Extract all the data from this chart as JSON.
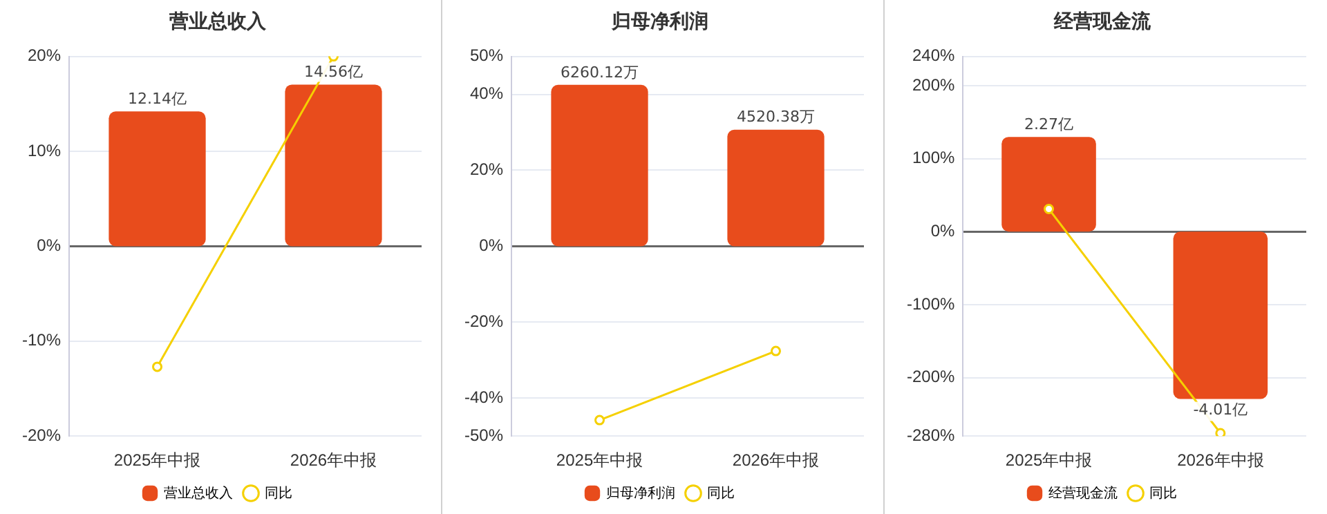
{
  "chart_data": [
    {
      "type": "bar",
      "title": "营业总收入",
      "categories": [
        "2025年中报",
        "2026年中报"
      ],
      "series": [
        {
          "name": "营业总收入",
          "color": "#e84c1c",
          "values": [
            12.14,
            14.56
          ],
          "value_labels": [
            "12.14亿",
            "14.56亿"
          ],
          "axis": "y2"
        },
        {
          "name": "同比",
          "type": "line",
          "color": "#f5d000",
          "values": [
            -12.7,
            20
          ]
        }
      ],
      "ylim": [
        -20,
        20
      ],
      "yticks": [
        {
          "value": -20,
          "label": "-20%"
        },
        {
          "value": -10,
          "label": "-10%"
        },
        {
          "value": 0,
          "label": "0%"
        },
        {
          "value": 10,
          "label": "10%"
        },
        {
          "value": 20,
          "label": "20%"
        }
      ],
      "y2lim": [
        -17.1,
        17.1
      ],
      "grid": "y",
      "legend": "bottom",
      "marker": "circle"
    },
    {
      "type": "bar",
      "title": "归母净利润",
      "categories": [
        "2025年中报",
        "2026年中报"
      ],
      "series": [
        {
          "name": "归母净利润",
          "color": "#e84c1c",
          "values": [
            6260.12,
            4520.38
          ],
          "value_labels": [
            "6260.12万",
            "4520.38万"
          ],
          "axis": "y2"
        },
        {
          "name": "同比",
          "type": "line",
          "color": "#f5d000",
          "values": [
            -45.8,
            -27.6
          ]
        }
      ],
      "ylim": [
        -50,
        50
      ],
      "yticks": [
        {
          "value": -50,
          "label": "-50%"
        },
        {
          "value": -40,
          "label": "-40%"
        },
        {
          "value": -20,
          "label": "-20%"
        },
        {
          "value": 0,
          "label": "0%"
        },
        {
          "value": 20,
          "label": "20%"
        },
        {
          "value": 40,
          "label": "40%"
        },
        {
          "value": 50,
          "label": "50%"
        }
      ],
      "y2lim": [
        -7365,
        7365
      ],
      "grid": "y",
      "legend": "bottom",
      "marker": "circle"
    },
    {
      "type": "bar",
      "title": "经营现金流",
      "categories": [
        "2025年中报",
        "2026年中报"
      ],
      "series": [
        {
          "name": "经营现金流",
          "color": "#e84c1c",
          "values": [
            2.27,
            -4.01
          ],
          "value_labels": [
            "2.27亿",
            "-4.01亿"
          ],
          "axis": "y2"
        },
        {
          "name": "同比",
          "type": "line",
          "color": "#f5d000",
          "values": [
            31,
            -276
          ]
        }
      ],
      "ylim": [
        -280,
        240
      ],
      "yticks": [
        {
          "value": -280,
          "label": "-280%"
        },
        {
          "value": -200,
          "label": "-200%"
        },
        {
          "value": -100,
          "label": "-100%"
        },
        {
          "value": 0,
          "label": "0%"
        },
        {
          "value": 100,
          "label": "100%"
        },
        {
          "value": 200,
          "label": "200%"
        },
        {
          "value": 240,
          "label": "240%"
        }
      ],
      "y2lim": [
        -4.9,
        4.2
      ],
      "grid": "y",
      "legend": "bottom",
      "marker": "circle"
    }
  ]
}
